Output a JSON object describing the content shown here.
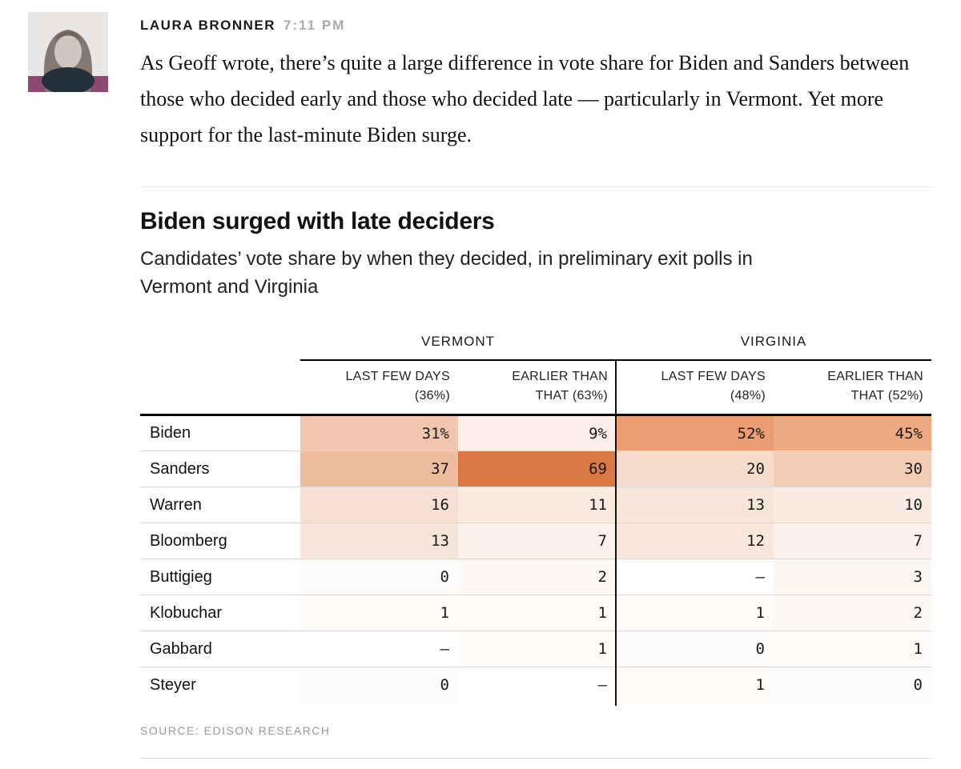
{
  "post": {
    "author": "LAURA BRONNER",
    "timestamp": "7:11 PM",
    "body": "As Geoff wrote, there’s quite a large difference in vote share for Biden and Sanders between those who decided early and those who decided late — particularly in Vermont. Yet more support for the last-minute Biden surge."
  },
  "chart": {
    "title": "Biden surged with late deciders",
    "subtitle_line1": "Candidates’ vote share by when they decided, in preliminary exit polls in",
    "subtitle_line2": "Vermont and Virginia",
    "source": "SOURCE: EDISON RESEARCH"
  },
  "chart_data": {
    "type": "table",
    "title": "Biden surged with late deciders",
    "subtitle": "Candidates’ vote share by when they decided, in preliminary exit polls in Vermont and Virginia",
    "source": "SOURCE: EDISON RESEARCH",
    "groups": [
      {
        "label": "VERMONT",
        "columns": [
          {
            "label": "LAST FEW DAYS (36%)",
            "line1": "LAST FEW DAYS",
            "line2": "(36%)"
          },
          {
            "label": "EARLIER THAN THAT (63%)",
            "line1": "EARLIER THAN",
            "line2": "THAT (63%)"
          }
        ]
      },
      {
        "label": "VIRGINIA",
        "columns": [
          {
            "label": "LAST FEW DAYS (48%)",
            "line1": "LAST FEW DAYS",
            "line2": "(48%)"
          },
          {
            "label": "EARLIER THAN THAT (52%)",
            "line1": "EARLIER THAN",
            "line2": "THAT (52%)"
          }
        ]
      }
    ],
    "rows": [
      {
        "candidate": "Biden",
        "values": [
          "31%",
          "9%",
          "52%",
          "45%"
        ],
        "colors": [
          "#f0c7ae",
          "#faeee6",
          "#eb9d73",
          "#edaa82"
        ]
      },
      {
        "candidate": "Sanders",
        "values": [
          "37",
          "69",
          "20",
          "30"
        ],
        "colors": [
          "#eebc9e",
          "#db7944",
          "#f6dccd",
          "#f2ccb5"
        ]
      },
      {
        "candidate": "Warren",
        "values": [
          "16",
          "11",
          "13",
          "10"
        ],
        "colors": [
          "#f7e0d3",
          "#f9e9df",
          "#f8e5d9",
          "#faebe2"
        ]
      },
      {
        "candidate": "Bloomberg",
        "values": [
          "13",
          "7",
          "12",
          "7"
        ],
        "colors": [
          "#f8e5d9",
          "#fbf1ea",
          "#f9e7db",
          "#fbf1ea"
        ]
      },
      {
        "candidate": "Buttigieg",
        "values": [
          "0",
          "2",
          "—",
          "3"
        ],
        "colors": [
          "#fefcfb",
          "#fdf8f4",
          "#ffffff",
          "#fcf6f1"
        ]
      },
      {
        "candidate": "Klobuchar",
        "values": [
          "1",
          "1",
          "1",
          "2"
        ],
        "colors": [
          "#fefbf8",
          "#fefbf8",
          "#fefbf8",
          "#fdf8f4"
        ]
      },
      {
        "candidate": "Gabbard",
        "values": [
          "—",
          "1",
          "0",
          "1"
        ],
        "colors": [
          "#ffffff",
          "#fefbf8",
          "#fefcfb",
          "#fefbf8"
        ]
      },
      {
        "candidate": "Steyer",
        "values": [
          "0",
          "—",
          "1",
          "0"
        ],
        "colors": [
          "#fefcfb",
          "#ffffff",
          "#fefbf8",
          "#fefcfb"
        ]
      }
    ],
    "heatmap": {
      "min_color": "#ffffff",
      "max_color": "#db7944",
      "scale_note": "sequential orange, darker = higher vote share"
    },
    "layout": {
      "value_alignment": "right",
      "group_divider": true
    }
  }
}
